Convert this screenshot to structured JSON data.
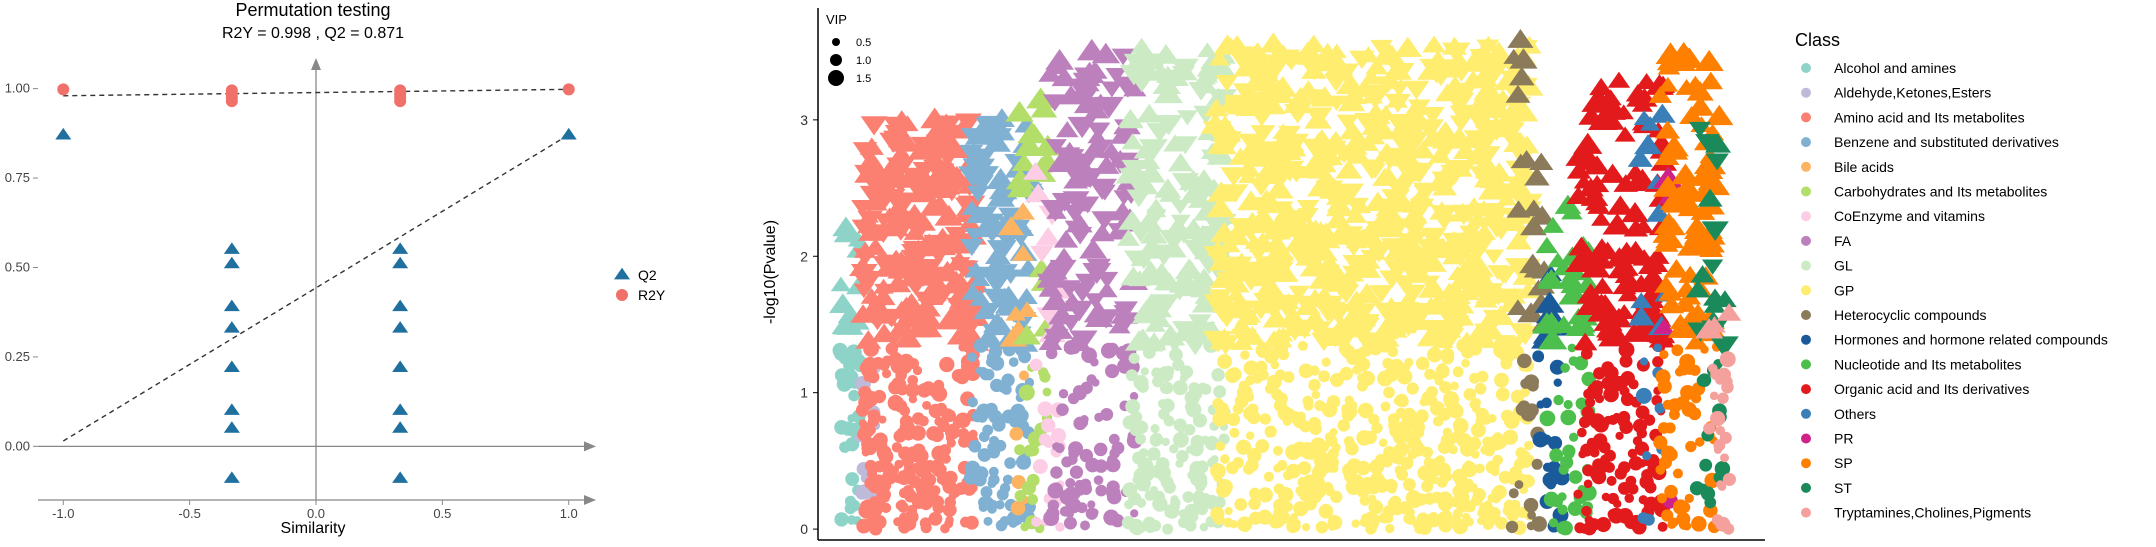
{
  "chart_data": [
    {
      "type": "scatter",
      "title": "Permutation testing",
      "subtitle": "R2Y = 0.998 ,  Q2 = 0.871",
      "xlabel": "Similarity",
      "ylabel": "",
      "xlim": [
        -1.1,
        1.1
      ],
      "ylim": [
        -0.15,
        1.08
      ],
      "x_ticks": [
        -1.0,
        -0.5,
        0.0,
        0.5,
        1.0
      ],
      "x_tick_labels": [
        "-1.0",
        "-0.5",
        "0.0",
        "0.5",
        "1.0"
      ],
      "y_ticks": [
        0.0,
        0.25,
        0.5,
        0.75,
        1.0
      ],
      "y_tick_labels": [
        "0.00",
        "0.25",
        "0.50",
        "0.75",
        "1.00"
      ],
      "legend_position": "right",
      "series": [
        {
          "name": "Q2",
          "marker": "triangle",
          "color": "#1f6f9f",
          "x": [
            -1.0,
            -0.333,
            -0.333,
            -0.333,
            -0.333,
            -0.333,
            -0.333,
            -0.333,
            -0.333,
            0.333,
            0.333,
            0.333,
            0.333,
            0.333,
            0.333,
            0.333,
            0.333,
            1.0
          ],
          "y": [
            0.87,
            0.55,
            0.51,
            0.39,
            0.33,
            0.22,
            0.1,
            0.05,
            -0.09,
            0.55,
            0.51,
            0.39,
            0.33,
            0.22,
            0.1,
            0.05,
            -0.09,
            0.87
          ]
        },
        {
          "name": "R2Y",
          "marker": "circle",
          "color": "#f0706a",
          "x": [
            -1.0,
            -0.333,
            -0.333,
            -0.333,
            -0.333,
            0.333,
            0.333,
            0.333,
            0.333,
            1.0
          ],
          "y": [
            0.998,
            0.995,
            0.985,
            0.975,
            0.965,
            0.995,
            0.985,
            0.975,
            0.965,
            0.998
          ]
        }
      ],
      "regression_lines": [
        {
          "series": "Q2",
          "x": [
            -1.0,
            1.0
          ],
          "y": [
            0.015,
            0.871
          ]
        },
        {
          "series": "R2Y",
          "x": [
            -1.0,
            1.0
          ],
          "y": [
            0.98,
            0.998
          ]
        }
      ]
    },
    {
      "type": "scatter",
      "title": "",
      "xlabel": "",
      "ylabel": "-log10(Pvalue)",
      "ylim": [
        -0.08,
        3.82
      ],
      "y_ticks": [
        0,
        1,
        2,
        3
      ],
      "y_tick_labels": [
        "0",
        "1",
        "2",
        "3"
      ],
      "size_legend": {
        "title": "VIP",
        "values": [
          0.5,
          1.0,
          1.5
        ],
        "labels": [
          "0.5",
          "1.0",
          "1.5"
        ]
      },
      "legend_title": "Class",
      "legend_position": "right",
      "x_order": [
        "Alcohol and amines",
        "Aldehyde,Ketones,Esters",
        "Amino acid and Its metabolites",
        "Benzene and substituted derivatives",
        "Bile acids",
        "Carbohydrates and Its metabolites",
        "CoEnzyme and vitamins",
        "FA",
        "GL",
        "GP",
        "Heterocyclic compounds",
        "Hormones and hormone related compounds",
        "Nucleotide and Its metabolites",
        "Organic acid and Its derivatives",
        "Others",
        "PR",
        "SP",
        "ST",
        "Tryptamines,Cholines,Pigments"
      ],
      "classes": [
        {
          "name": "Alcohol and amines",
          "color": "#8dd3c7",
          "count": 45,
          "spread": 0.04
        },
        {
          "name": "Aldehyde,Ketones,Esters",
          "color": "#bebada",
          "count": 12,
          "spread": 0.02
        },
        {
          "name": "Amino acid and Its metabolites",
          "color": "#fb8072",
          "count": 420,
          "spread": 0.25
        },
        {
          "name": "Benzene and substituted derivatives",
          "color": "#80b1d3",
          "count": 160,
          "spread": 0.11
        },
        {
          "name": "Bile acids",
          "color": "#fdb462",
          "count": 12,
          "spread": 0.02
        },
        {
          "name": "Carbohydrates and Its metabolites",
          "color": "#b3de69",
          "count": 40,
          "spread": 0.04
        },
        {
          "name": "CoEnzyme and vitamins",
          "color": "#fccde5",
          "count": 25,
          "spread": 0.03
        },
        {
          "name": "FA",
          "color": "#bc80bd",
          "count": 200,
          "spread": 0.16
        },
        {
          "name": "GL",
          "color": "#ccebc5",
          "count": 300,
          "spread": 0.19
        },
        {
          "name": "GP",
          "color": "#ffed6f",
          "count": 1100,
          "spread": 0.68
        },
        {
          "name": "Heterocyclic compounds",
          "color": "#8c7b5a",
          "count": 40,
          "spread": 0.05
        },
        {
          "name": "Hormones and hormone related compounds",
          "color": "#1a5a9a",
          "count": 25,
          "spread": 0.04
        },
        {
          "name": "Nucleotide and Its metabolites",
          "color": "#4dbf4d",
          "count": 60,
          "spread": 0.06
        },
        {
          "name": "Organic acid and Its derivatives",
          "color": "#e31a1c",
          "count": 230,
          "spread": 0.13
        },
        {
          "name": "Others",
          "color": "#3a7fb8",
          "count": 20,
          "spread": 0.03
        },
        {
          "name": "PR",
          "color": "#d0218a",
          "count": 4,
          "spread": 0.01
        },
        {
          "name": "SP",
          "color": "#ff7f00",
          "count": 130,
          "spread": 0.09
        },
        {
          "name": "ST",
          "color": "#1b8a5a",
          "count": 30,
          "spread": 0.04
        },
        {
          "name": "Tryptamines,Cholines,Pigments",
          "color": "#f4a09c",
          "count": 25,
          "spread": 0.03
        }
      ]
    }
  ]
}
